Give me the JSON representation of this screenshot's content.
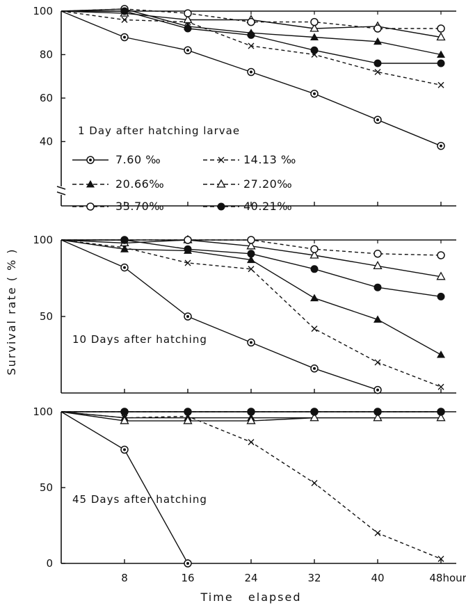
{
  "figure": {
    "ylabel": "Survival rate ( % )",
    "xlabel": "Time   elapsed",
    "x_tick_labels": [
      "8",
      "16",
      "24",
      "32",
      "40",
      "48hours"
    ]
  },
  "legend": [
    {
      "symbol": "double-circle",
      "line": "solid",
      "label": "7.60 ‰"
    },
    {
      "symbol": "x",
      "line": "dashed",
      "label": "14.13 ‰"
    },
    {
      "symbol": "filled-triangle",
      "line": "dashed",
      "label": "20.66‰"
    },
    {
      "symbol": "open-triangle",
      "line": "dashed",
      "label": "27.20‰"
    },
    {
      "symbol": "open-circle",
      "line": "dashed",
      "label": "33.70‰"
    },
    {
      "symbol": "filled-circle",
      "line": "dashed",
      "label": "40.21‰"
    }
  ],
  "chart_data": [
    {
      "type": "line",
      "annotation": "1 Day  after hatching larvae",
      "x": [
        0,
        8,
        16,
        24,
        32,
        40,
        48
      ],
      "ylim": [
        35,
        100
      ],
      "y_ticks": [
        40,
        60,
        80,
        100
      ],
      "axis_break": true,
      "series": [
        {
          "name": "7.60 ‰",
          "symbol": "double-circle",
          "line": "solid",
          "values": [
            100,
            88,
            82,
            72,
            62,
            50,
            38
          ]
        },
        {
          "name": "14.13 ‰",
          "symbol": "x",
          "line": "dashed",
          "values": [
            100,
            96,
            95,
            84,
            80,
            72,
            66
          ]
        },
        {
          "name": "20.66‰",
          "symbol": "filled-triangle",
          "line": "solid",
          "values": [
            100,
            101,
            93,
            90,
            88,
            86,
            80
          ]
        },
        {
          "name": "27.20‰",
          "symbol": "open-triangle",
          "line": "solid",
          "values": [
            100,
            99,
            96,
            96,
            92,
            93,
            88
          ]
        },
        {
          "name": "33.70‰",
          "symbol": "open-circle",
          "line": "dashed",
          "values": [
            100,
            101,
            99,
            95,
            95,
            92,
            92
          ]
        },
        {
          "name": "40.21‰",
          "symbol": "filled-circle",
          "line": "solid",
          "values": [
            100,
            100,
            92,
            89,
            82,
            76,
            76
          ]
        }
      ]
    },
    {
      "type": "line",
      "annotation": "10 Days  after  hatching",
      "x": [
        0,
        8,
        16,
        24,
        32,
        40,
        48
      ],
      "ylim": [
        0,
        100
      ],
      "y_ticks": [
        50,
        100
      ],
      "series": [
        {
          "name": "7.60 ‰",
          "symbol": "double-circle",
          "line": "solid",
          "values": [
            100,
            82,
            50,
            33,
            16,
            2,
            null
          ]
        },
        {
          "name": "14.13 ‰",
          "symbol": "x",
          "line": "dashed",
          "values": [
            100,
            95,
            85,
            81,
            42,
            20,
            4
          ]
        },
        {
          "name": "20.66‰",
          "symbol": "filled-triangle",
          "line": "solid",
          "values": [
            100,
            94,
            93,
            87,
            62,
            48,
            25
          ]
        },
        {
          "name": "27.20‰",
          "symbol": "open-triangle",
          "line": "solid",
          "values": [
            100,
            98,
            100,
            96,
            90,
            83,
            76
          ]
        },
        {
          "name": "33.70‰",
          "symbol": "open-circle",
          "line": "dashed",
          "values": [
            100,
            100,
            100,
            100,
            94,
            91,
            90
          ]
        },
        {
          "name": "40.21‰",
          "symbol": "filled-circle",
          "line": "solid",
          "values": [
            100,
            100,
            94,
            91,
            81,
            69,
            63
          ]
        }
      ]
    },
    {
      "type": "line",
      "annotation": "45 Days  after  hatching",
      "x": [
        0,
        8,
        16,
        24,
        32,
        40,
        48
      ],
      "ylim": [
        0,
        100
      ],
      "y_ticks": [
        0,
        50,
        100
      ],
      "series": [
        {
          "name": "7.60 ‰",
          "symbol": "double-circle",
          "line": "solid",
          "values": [
            100,
            75,
            0,
            null,
            null,
            null,
            null
          ]
        },
        {
          "name": "14.13 ‰",
          "symbol": "x",
          "line": "dashed",
          "values": [
            100,
            96,
            97,
            80,
            53,
            20,
            3
          ]
        },
        {
          "name": "20.66‰",
          "symbol": "filled-triangle",
          "line": "solid",
          "values": [
            100,
            96,
            96,
            96,
            96,
            96,
            96
          ]
        },
        {
          "name": "27.20‰",
          "symbol": "open-triangle",
          "line": "solid",
          "values": [
            100,
            94,
            94,
            94,
            96,
            96,
            96
          ]
        },
        {
          "name": "33.70‰",
          "symbol": "open-circle",
          "line": "dashed",
          "values": [
            100,
            100,
            100,
            100,
            100,
            100,
            100
          ]
        },
        {
          "name": "40.21‰",
          "symbol": "filled-circle",
          "line": "solid",
          "values": [
            100,
            100,
            100,
            100,
            100,
            100,
            100
          ]
        }
      ]
    }
  ]
}
